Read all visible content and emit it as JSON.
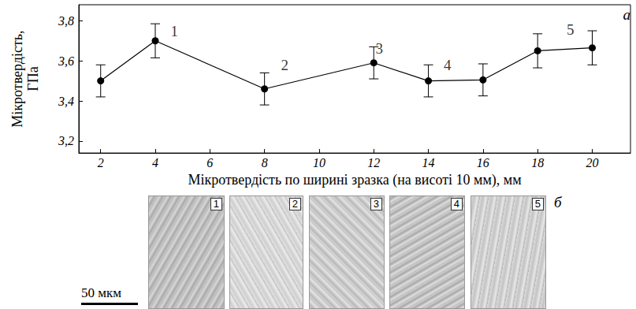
{
  "chart_data": {
    "type": "line",
    "title": "а",
    "x_label": "Мікротвердість по ширині зразка (на висоті 10 мм), мм",
    "y_label": "Мікротвердість,\nГПа",
    "x": [
      2,
      4,
      8,
      12,
      14,
      16,
      18,
      20
    ],
    "values": [
      3.5,
      3.7,
      3.46,
      3.59,
      3.5,
      3.505,
      3.65,
      3.665
    ],
    "errors": [
      0.08,
      0.085,
      0.08,
      0.08,
      0.08,
      0.08,
      0.085,
      0.085
    ],
    "color": "#000000",
    "marker": "circle",
    "line_style": "solid",
    "xlim": [
      1.2,
      21.4
    ],
    "xticks": [
      2,
      4,
      6,
      8,
      10,
      12,
      14,
      16,
      18,
      20
    ],
    "ylim": [
      3.14,
      3.88
    ],
    "yticks": [
      {
        "value": 3.2,
        "label": "3,2"
      },
      {
        "value": 3.4,
        "label": "3,4"
      },
      {
        "value": 3.6,
        "label": "3,6"
      },
      {
        "value": 3.8,
        "label": "3,8"
      }
    ],
    "grid": false,
    "annotations": [
      {
        "text": "1",
        "x": 4.7,
        "y": 3.75
      },
      {
        "text": "2",
        "x": 8.74,
        "y": 3.58
      },
      {
        "text": "3",
        "x": 12.2,
        "y": 3.66
      },
      {
        "text": "4",
        "x": 14.7,
        "y": 3.58
      },
      {
        "text": "5",
        "x": 19.2,
        "y": 3.755
      }
    ]
  },
  "micrographs": {
    "label": "б",
    "panels": [
      "1",
      "2",
      "3",
      "4",
      "5"
    ],
    "scale_bar": "50 мкм"
  }
}
